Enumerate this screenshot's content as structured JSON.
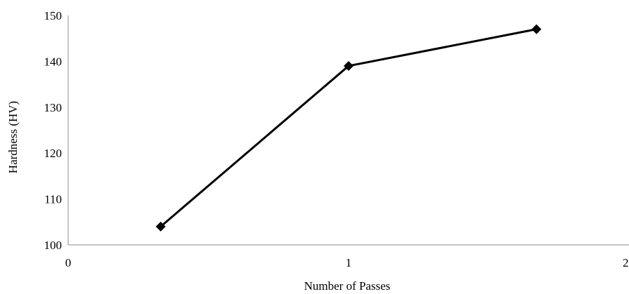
{
  "chart_data": {
    "type": "line",
    "title": "",
    "xlabel": "Number of Passes",
    "ylabel": "Hardness (HV)",
    "xlim": [
      0,
      2
    ],
    "ylim": [
      100,
      150
    ],
    "x_ticks": [
      "0",
      "1",
      "2"
    ],
    "y_ticks": [
      "100",
      "110",
      "120",
      "130",
      "140",
      "150"
    ],
    "grid": false,
    "legend": "none",
    "series": [
      {
        "color": "#000000",
        "marker": "diamond",
        "points": [
          {
            "x": 0.33,
            "y": 104
          },
          {
            "x": 1.0,
            "y": 139
          },
          {
            "x": 1.67,
            "y": 147
          }
        ]
      }
    ]
  }
}
